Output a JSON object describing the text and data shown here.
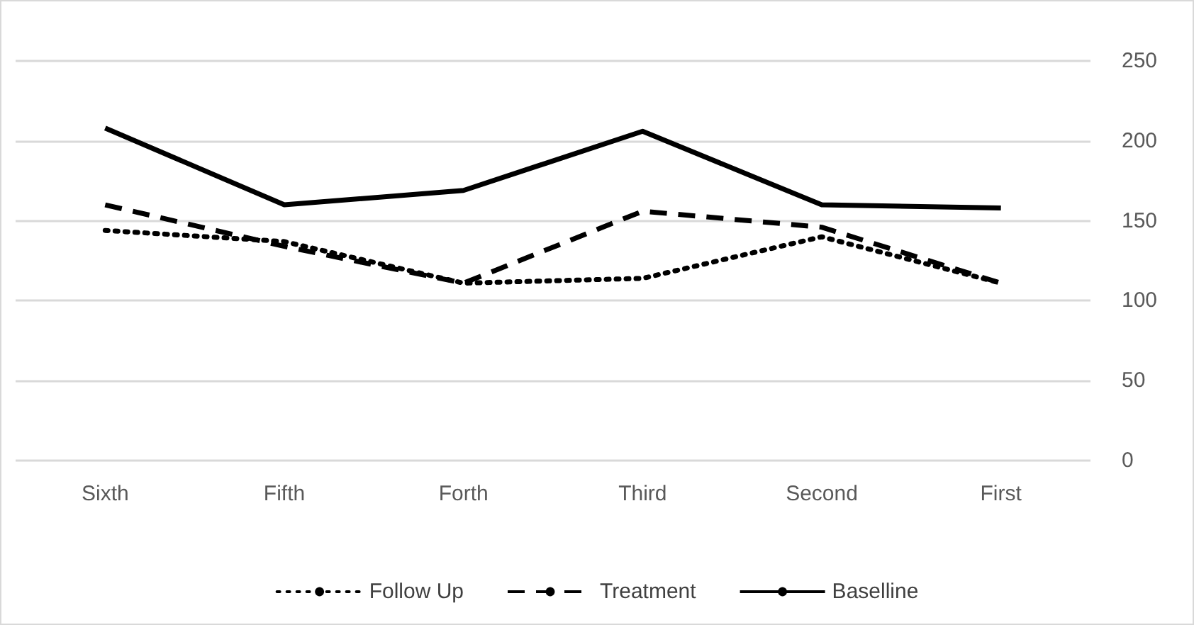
{
  "chart_data": {
    "type": "line",
    "categories": [
      "Sixth",
      "Fifth",
      "Forth",
      "Third",
      "Second",
      "First"
    ],
    "series": [
      {
        "name": "Follow Up",
        "color": "#000000",
        "line_style": "dotted",
        "values": [
          144,
          137,
          111,
          114,
          140,
          111
        ]
      },
      {
        "name": "Treatment",
        "color": "#000000",
        "line_style": "dashed",
        "values": [
          160,
          134,
          111,
          156,
          146,
          111
        ]
      },
      {
        "name": "Baselline",
        "color": "#000000",
        "line_style": "solid",
        "values": [
          208,
          160,
          169,
          206,
          160,
          158
        ]
      }
    ],
    "ylim": [
      0,
      250
    ],
    "yticks": [
      0,
      50,
      100,
      150,
      200,
      250
    ],
    "grid": "y",
    "legend": "bottom",
    "marker": "none"
  }
}
